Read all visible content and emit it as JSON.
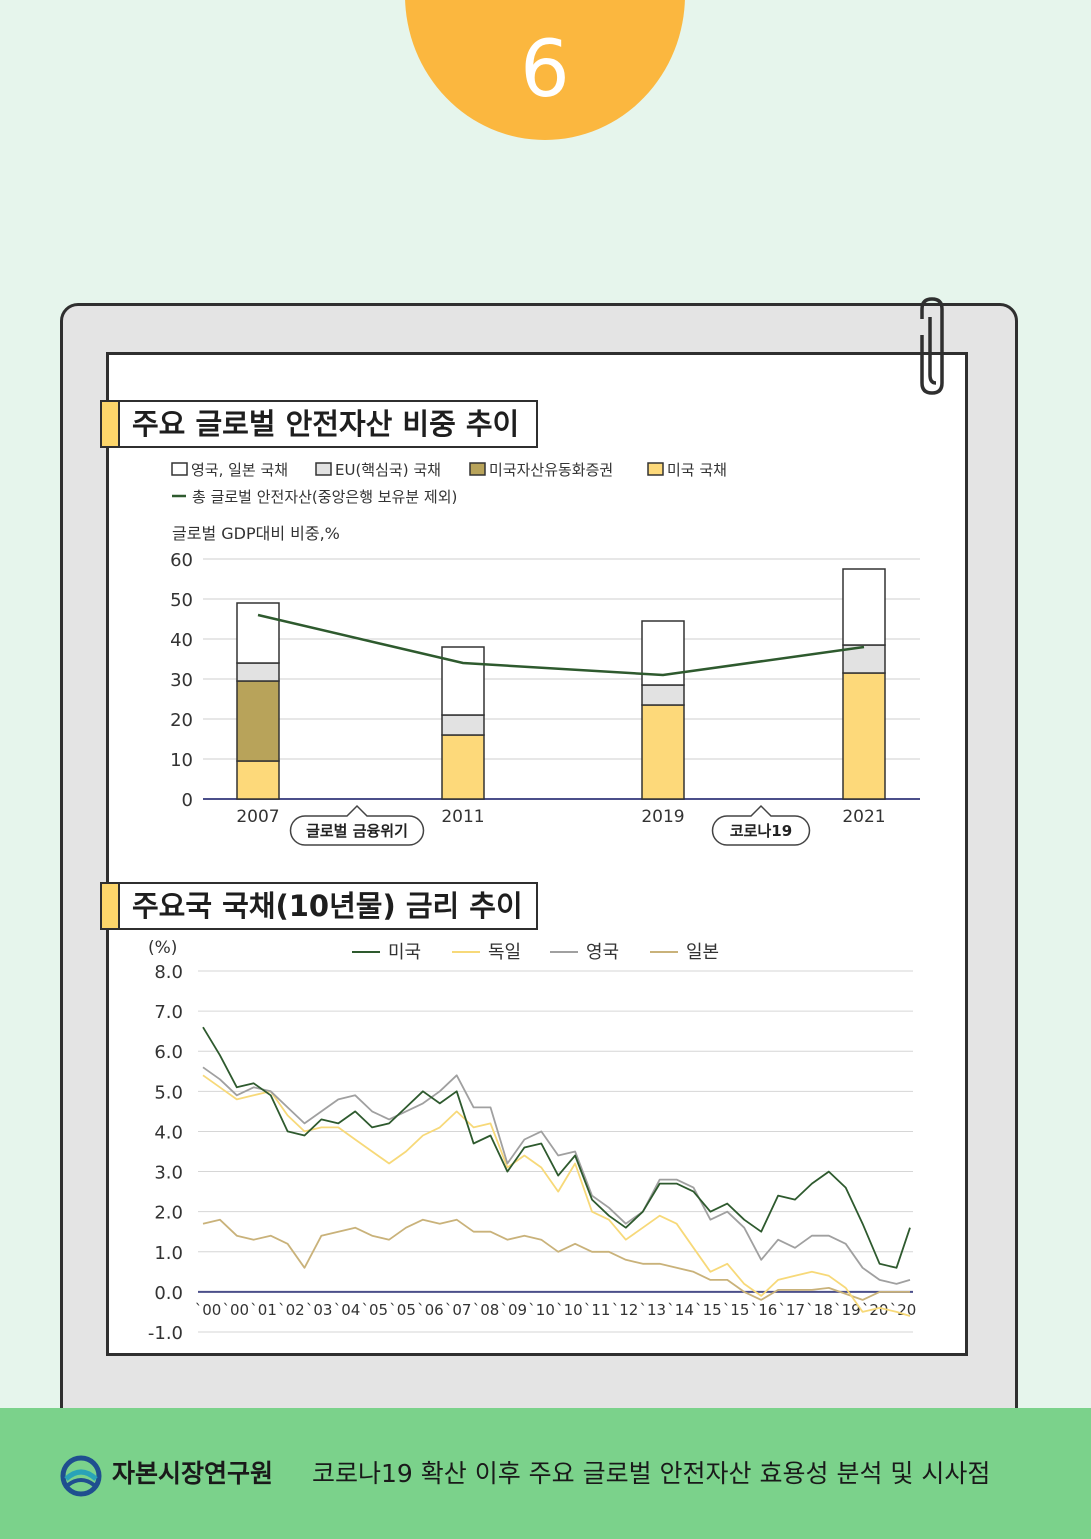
{
  "page_number": "6",
  "chart1_title": "주요 글로벌 안전자산 비중 추이",
  "chart2_title": "주요국 국채(10년물) 금리 추이",
  "footer": {
    "org": "자본시장연구원",
    "report_title": "코로나19 확산 이후 주요 글로벌 안전자산 효용성 분석 및 시사점"
  },
  "chart_data": [
    {
      "type": "bar",
      "stacked": true,
      "ylabel": "글로벌 GDP대비 비중,%",
      "ylim": [
        0,
        60
      ],
      "yticks": [
        0,
        10,
        20,
        30,
        40,
        50,
        60
      ],
      "categories": [
        "2007",
        "2011",
        "2019",
        "2021"
      ],
      "series": [
        {
          "name": "미국 국채",
          "color": "#fdd97a",
          "values": [
            9.5,
            16,
            23.5,
            31.5
          ]
        },
        {
          "name": "미국자산유동화증권",
          "color": "#b8a35a",
          "values": [
            20,
            0,
            0,
            0
          ]
        },
        {
          "name": "EU(핵심국) 국채",
          "color": "#e2e2e2",
          "values": [
            4.5,
            5,
            5,
            7
          ]
        },
        {
          "name": "영국, 일본 국채",
          "color": "#ffffff",
          "values": [
            15,
            17,
            16,
            19
          ]
        }
      ],
      "line_series": {
        "name": "총 글로벌 안전자산(중앙은행 보유분 제외)",
        "color": "#2e5a2e",
        "values": [
          46,
          34,
          31,
          38
        ]
      },
      "legend_order": [
        "영국, 일본 국채",
        "EU(핵심국) 국채",
        "미국자산유동화증권",
        "미국 국채"
      ],
      "annotations": [
        "글로벌 금융위기",
        "코로나19"
      ],
      "legend": "top-left",
      "grid": true
    },
    {
      "type": "line",
      "ylabel": "(%)",
      "ylim": [
        -1,
        8
      ],
      "yticks": [
        "8.0",
        "7.0",
        "6.0",
        "5.0",
        "4.0",
        "3.0",
        "2.0",
        "1.0",
        "0.0",
        "-1.0"
      ],
      "ytick_values": [
        8,
        7,
        6,
        5,
        4,
        3,
        2,
        1,
        0,
        -1
      ],
      "xtick_labels": [
        "`00",
        "`00",
        "`01",
        "`02",
        "`03",
        "`04",
        "`05",
        "`05",
        "`06",
        "`07",
        "`08",
        "`09",
        "`10",
        "`10",
        "`11",
        "`12",
        "`13",
        "`14",
        "`15",
        "`15",
        "`16",
        "`17",
        "`18",
        "`19",
        "`20",
        "`20"
      ],
      "x_start_year": 2000,
      "x_end_year": 2020.9,
      "series": [
        {
          "name": "미국",
          "color": "#2e5a2e",
          "x": [
            2000.0,
            2000.5,
            2001.0,
            2001.5,
            2002.0,
            2002.5,
            2003.0,
            2003.5,
            2004.0,
            2004.5,
            2005.0,
            2005.5,
            2006.0,
            2006.5,
            2007.0,
            2007.5,
            2008.0,
            2008.5,
            2009.0,
            2009.5,
            2010.0,
            2010.5,
            2011.0,
            2011.5,
            2012.0,
            2012.5,
            2013.0,
            2013.5,
            2014.0,
            2014.5,
            2015.0,
            2015.5,
            2016.0,
            2016.5,
            2017.0,
            2017.5,
            2018.0,
            2018.5,
            2019.0,
            2019.5,
            2020.0,
            2020.5,
            2020.9
          ],
          "y": [
            6.6,
            5.9,
            5.1,
            5.2,
            4.9,
            4.0,
            3.9,
            4.3,
            4.2,
            4.5,
            4.1,
            4.2,
            4.6,
            5.0,
            4.7,
            5.0,
            3.7,
            3.9,
            3.0,
            3.6,
            3.7,
            2.9,
            3.4,
            2.3,
            1.9,
            1.6,
            2.0,
            2.7,
            2.7,
            2.5,
            2.0,
            2.2,
            1.8,
            1.5,
            2.4,
            2.3,
            2.7,
            3.0,
            2.6,
            1.7,
            0.7,
            0.6,
            1.6
          ]
        },
        {
          "name": "독일",
          "color": "#f7d979",
          "x": [
            2000.0,
            2000.5,
            2001.0,
            2001.5,
            2002.0,
            2002.5,
            2003.0,
            2003.5,
            2004.0,
            2004.5,
            2005.0,
            2005.5,
            2006.0,
            2006.5,
            2007.0,
            2007.5,
            2008.0,
            2008.5,
            2009.0,
            2009.5,
            2010.0,
            2010.5,
            2011.0,
            2011.5,
            2012.0,
            2012.5,
            2013.0,
            2013.5,
            2014.0,
            2014.5,
            2015.0,
            2015.5,
            2016.0,
            2016.5,
            2017.0,
            2017.5,
            2018.0,
            2018.5,
            2019.0,
            2019.5,
            2020.0,
            2020.5,
            2020.9
          ],
          "y": [
            5.4,
            5.1,
            4.8,
            4.9,
            5.0,
            4.4,
            4.0,
            4.1,
            4.1,
            3.8,
            3.5,
            3.2,
            3.5,
            3.9,
            4.1,
            4.5,
            4.1,
            4.2,
            3.1,
            3.4,
            3.1,
            2.5,
            3.2,
            2.0,
            1.8,
            1.3,
            1.6,
            1.9,
            1.7,
            1.1,
            0.5,
            0.7,
            0.2,
            -0.1,
            0.3,
            0.4,
            0.5,
            0.4,
            0.1,
            -0.5,
            -0.4,
            -0.5,
            -0.6
          ]
        },
        {
          "name": "영국",
          "color": "#a0a0a0",
          "x": [
            2000.0,
            2000.5,
            2001.0,
            2001.5,
            2002.0,
            2002.5,
            2003.0,
            2003.5,
            2004.0,
            2004.5,
            2005.0,
            2005.5,
            2006.0,
            2006.5,
            2007.0,
            2007.5,
            2008.0,
            2008.5,
            2009.0,
            2009.5,
            2010.0,
            2010.5,
            2011.0,
            2011.5,
            2012.0,
            2012.5,
            2013.0,
            2013.5,
            2014.0,
            2014.5,
            2015.0,
            2015.5,
            2016.0,
            2016.5,
            2017.0,
            2017.5,
            2018.0,
            2018.5,
            2019.0,
            2019.5,
            2020.0,
            2020.5,
            2020.9
          ],
          "y": [
            5.6,
            5.3,
            4.9,
            5.1,
            5.0,
            4.6,
            4.2,
            4.5,
            4.8,
            4.9,
            4.5,
            4.3,
            4.5,
            4.7,
            5.0,
            5.4,
            4.6,
            4.6,
            3.2,
            3.8,
            4.0,
            3.4,
            3.5,
            2.4,
            2.1,
            1.7,
            2.0,
            2.8,
            2.8,
            2.6,
            1.8,
            2.0,
            1.6,
            0.8,
            1.3,
            1.1,
            1.4,
            1.4,
            1.2,
            0.6,
            0.3,
            0.2,
            0.3
          ]
        },
        {
          "name": "일본",
          "color": "#c9b27a",
          "x": [
            2000.0,
            2000.5,
            2001.0,
            2001.5,
            2002.0,
            2002.5,
            2003.0,
            2003.5,
            2004.0,
            2004.5,
            2005.0,
            2005.5,
            2006.0,
            2006.5,
            2007.0,
            2007.5,
            2008.0,
            2008.5,
            2009.0,
            2009.5,
            2010.0,
            2010.5,
            2011.0,
            2011.5,
            2012.0,
            2012.5,
            2013.0,
            2013.5,
            2014.0,
            2014.5,
            2015.0,
            2015.5,
            2016.0,
            2016.5,
            2017.0,
            2017.5,
            2018.0,
            2018.5,
            2019.0,
            2019.5,
            2020.0,
            2020.5,
            2020.9
          ],
          "y": [
            1.7,
            1.8,
            1.4,
            1.3,
            1.4,
            1.2,
            0.6,
            1.4,
            1.5,
            1.6,
            1.4,
            1.3,
            1.6,
            1.8,
            1.7,
            1.8,
            1.5,
            1.5,
            1.3,
            1.4,
            1.3,
            1.0,
            1.2,
            1.0,
            1.0,
            0.8,
            0.7,
            0.7,
            0.6,
            0.5,
            0.3,
            0.3,
            0.0,
            -0.2,
            0.05,
            0.05,
            0.05,
            0.1,
            -0.05,
            -0.2,
            0.0,
            0.0,
            0.0
          ]
        }
      ],
      "grid": true,
      "legend": "top-center"
    }
  ]
}
